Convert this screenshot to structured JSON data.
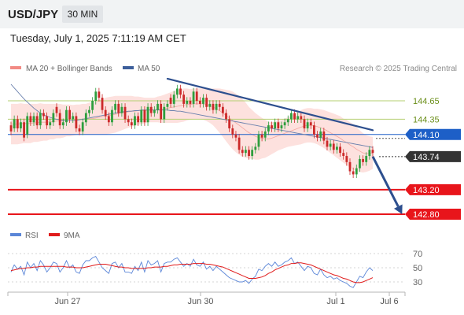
{
  "header": {
    "symbol": "USD/JPY",
    "timeframe": "30 MIN",
    "datetime": "Tuesday, July 1, 2025 7:11:19 AM CET"
  },
  "legend": {
    "bollinger": {
      "label": "MA 20 + Bollinger Bands",
      "color": "#f28a84"
    },
    "ma50": {
      "label": "MA 50",
      "color": "#3d5f9b"
    },
    "rsi": {
      "label": "RSI",
      "color": "#5b86d8"
    },
    "rsi_ma": {
      "label": "9MA",
      "color": "#e01b1b"
    }
  },
  "credit": "Research © 2025 Trading Central",
  "colors": {
    "up": "#2e9e3e",
    "down": "#cc2929",
    "resistance": "#b5cf72",
    "pivot": "#1d5fc7",
    "support": "#e8151b",
    "current": "#333333",
    "trendline": "#2d4f8e",
    "band_fill": "#fde1de"
  },
  "chart_data": {
    "type": "candlestick",
    "y_unit": "JPY per USD",
    "ylim": [
      142.6,
      145.05
    ],
    "x_ticks": [
      "Jun 27",
      "Jun 30",
      "Jul 1",
      "Jul 6"
    ],
    "levels": [
      {
        "value": 144.65,
        "label": "144.65",
        "kind": "resistance"
      },
      {
        "value": 144.35,
        "label": "144.35",
        "kind": "resistance"
      },
      {
        "value": 144.1,
        "label": "144.10",
        "kind": "pivot"
      },
      {
        "value": 143.74,
        "label": "143.74",
        "kind": "current"
      },
      {
        "value": 143.2,
        "label": "143.20",
        "kind": "support"
      },
      {
        "value": 142.8,
        "label": "142.80",
        "kind": "support"
      }
    ],
    "close": [
      144.15,
      144.35,
      144.2,
      144.3,
      144.05,
      144.4,
      144.3,
      144.4,
      144.25,
      144.45,
      144.4,
      144.25,
      144.3,
      144.45,
      144.45,
      144.25,
      144.3,
      144.5,
      144.35,
      144.4,
      144.2,
      144.15,
      144.3,
      144.45,
      144.5,
      144.65,
      144.8,
      144.7,
      144.5,
      144.4,
      144.3,
      144.5,
      144.6,
      144.45,
      144.55,
      144.35,
      144.3,
      144.25,
      144.4,
      144.3,
      144.5,
      144.3,
      144.55,
      144.45,
      144.5,
      144.6,
      144.35,
      144.55,
      144.6,
      144.6,
      144.75,
      144.85,
      144.75,
      144.6,
      144.65,
      144.6,
      144.8,
      144.65,
      144.6,
      144.7,
      144.55,
      144.6,
      144.5,
      144.6,
      144.55,
      144.45,
      144.35,
      144.2,
      144.1,
      144.05,
      143.85,
      143.8,
      143.85,
      143.75,
      143.85,
      143.9,
      144.1,
      144.05,
      144.15,
      144.25,
      144.2,
      144.3,
      144.2,
      144.25,
      144.3,
      144.35,
      144.45,
      144.35,
      144.4,
      144.35,
      144.2,
      144.3,
      144.25,
      144.1,
      144.05,
      144.15,
      144.0,
      143.9,
      143.95,
      143.85,
      143.9,
      143.8,
      143.75,
      143.65,
      143.5,
      143.45,
      143.55,
      143.7,
      143.65,
      143.75,
      143.85,
      143.8
    ],
    "open_offset": [
      0.1,
      -0.15,
      0.15,
      -0.1,
      0.25,
      -0.3,
      0.1,
      -0.1,
      0.15,
      -0.2,
      0.05,
      0.15,
      -0.05,
      -0.15,
      0.1,
      0.2,
      -0.05,
      -0.2,
      0.15,
      -0.05,
      0.2,
      0.05,
      -0.15,
      -0.15,
      -0.05,
      -0.15,
      -0.15,
      0.1,
      0.2,
      0.1,
      0.1,
      -0.2,
      -0.1,
      0.15,
      -0.1,
      0.2,
      0.05,
      0.05,
      -0.15,
      0.1,
      -0.2,
      0.2,
      -0.25,
      0.1,
      -0.05,
      -0.1,
      0.25,
      -0.2,
      -0.05,
      0.1,
      -0.15,
      -0.1,
      0.1,
      0.15,
      -0.05,
      0.05,
      -0.2,
      0.15,
      0.05,
      -0.1,
      0.15,
      -0.05,
      0.1,
      -0.1,
      0.05,
      0.1,
      0.1,
      0.15,
      0.1,
      0.05,
      0.2,
      0.05,
      -0.05,
      0.1,
      -0.1,
      -0.05,
      -0.2,
      0.05,
      -0.1,
      -0.1,
      0.05,
      -0.1,
      0.1,
      -0.05,
      -0.05,
      -0.05,
      -0.1,
      0.1,
      -0.05,
      0.05,
      0.15,
      -0.1,
      0.05,
      0.15,
      0.05,
      -0.1,
      0.15,
      0.1,
      -0.05,
      0.1,
      -0.05,
      0.1,
      0.05,
      0.1,
      0.15,
      0.05,
      -0.1,
      -0.15,
      0.05,
      -0.1,
      -0.1,
      0.05
    ],
    "ma50": [
      144.92,
      144.86,
      144.8,
      144.74,
      144.68,
      144.63,
      144.58,
      144.53,
      144.49,
      144.45,
      144.42,
      144.4,
      144.38,
      144.36,
      144.35,
      144.34,
      144.33,
      144.33,
      144.33,
      144.33,
      144.33,
      144.34,
      144.35,
      144.36,
      144.37,
      144.38,
      144.39,
      144.4,
      144.41,
      144.42,
      144.43,
      144.44,
      144.45,
      144.46,
      144.47,
      144.47,
      144.48,
      144.48,
      144.49,
      144.49,
      144.5,
      144.5,
      144.5,
      144.5,
      144.5,
      144.5,
      144.5,
      144.5,
      144.5,
      144.49,
      144.49,
      144.48,
      144.48,
      144.47,
      144.46,
      144.45,
      144.44,
      144.43,
      144.42,
      144.41,
      144.4,
      144.39,
      144.38,
      144.37,
      144.36,
      144.35,
      144.34,
      144.33,
      144.32,
      144.31,
      144.3,
      144.29,
      144.28,
      144.27,
      144.26,
      144.25,
      144.24,
      144.23,
      144.22,
      144.21,
      144.2,
      144.19,
      144.18,
      144.17,
      144.16,
      144.15,
      144.14,
      144.13,
      144.12,
      144.11,
      144.1,
      144.09,
      144.08,
      144.07,
      144.06,
      144.05,
      144.04,
      144.03,
      144.02,
      144.01,
      144.0,
      143.99,
      143.98,
      143.97,
      143.96,
      143.95,
      143.94,
      143.93,
      143.92,
      143.91,
      143.9,
      143.89
    ],
    "bb_mid": [
      144.27,
      144.27,
      144.27,
      144.28,
      144.28,
      144.28,
      144.28,
      144.29,
      144.29,
      144.3,
      144.3,
      144.3,
      144.31,
      144.31,
      144.32,
      144.32,
      144.32,
      144.33,
      144.33,
      144.33,
      144.34,
      144.34,
      144.35,
      144.35,
      144.36,
      144.36,
      144.37,
      144.38,
      144.39,
      144.4,
      144.41,
      144.42,
      144.43,
      144.44,
      144.45,
      144.46,
      144.47,
      144.48,
      144.48,
      144.49,
      144.49,
      144.49,
      144.5,
      144.5,
      144.5,
      144.51,
      144.51,
      144.52,
      144.53,
      144.54,
      144.55,
      144.56,
      144.57,
      144.58,
      144.59,
      144.59,
      144.6,
      144.6,
      144.6,
      144.6,
      144.59,
      144.57,
      144.55,
      144.52,
      144.49,
      144.45,
      144.41,
      144.37,
      144.33,
      144.29,
      144.25,
      144.21,
      144.17,
      144.13,
      144.1,
      144.07,
      144.05,
      144.04,
      144.03,
      144.03,
      144.04,
      144.06,
      144.08,
      144.1,
      144.12,
      144.14,
      144.16,
      144.18,
      144.2,
      144.22,
      144.24,
      144.25,
      144.25,
      144.24,
      144.23,
      144.21,
      144.19,
      144.16,
      144.13,
      144.1,
      144.07,
      144.04,
      144.0,
      143.97,
      143.93,
      143.9,
      143.86,
      143.83,
      143.8,
      143.79,
      143.79,
      143.8
    ],
    "bb_width": [
      0.33,
      0.33,
      0.33,
      0.33,
      0.32,
      0.32,
      0.32,
      0.31,
      0.31,
      0.31,
      0.3,
      0.3,
      0.29,
      0.29,
      0.28,
      0.28,
      0.27,
      0.26,
      0.26,
      0.25,
      0.25,
      0.25,
      0.25,
      0.25,
      0.26,
      0.26,
      0.27,
      0.28,
      0.29,
      0.3,
      0.3,
      0.3,
      0.3,
      0.29,
      0.28,
      0.27,
      0.26,
      0.25,
      0.24,
      0.23,
      0.22,
      0.21,
      0.2,
      0.2,
      0.2,
      0.21,
      0.22,
      0.23,
      0.24,
      0.25,
      0.26,
      0.27,
      0.27,
      0.27,
      0.26,
      0.25,
      0.25,
      0.25,
      0.25,
      0.26,
      0.27,
      0.28,
      0.3,
      0.33,
      0.36,
      0.39,
      0.42,
      0.45,
      0.47,
      0.48,
      0.48,
      0.47,
      0.45,
      0.42,
      0.4,
      0.38,
      0.36,
      0.33,
      0.31,
      0.28,
      0.26,
      0.25,
      0.24,
      0.24,
      0.24,
      0.24,
      0.25,
      0.26,
      0.27,
      0.28,
      0.28,
      0.28,
      0.28,
      0.28,
      0.29,
      0.3,
      0.31,
      0.32,
      0.33,
      0.34,
      0.35,
      0.36,
      0.36,
      0.37,
      0.37,
      0.37,
      0.36,
      0.34,
      0.32,
      0.3,
      0.28,
      0.26
    ],
    "trendline": {
      "from": {
        "index": 48,
        "value": 145.01
      },
      "to": {
        "index": 111,
        "value": 144.17
      }
    },
    "forecast_arrow": {
      "from": {
        "index": 111,
        "value": 143.74
      },
      "to": {
        "index": 120,
        "value": 142.8
      }
    },
    "rsi_panel": {
      "ticks": [
        70,
        50,
        30
      ],
      "ylim": [
        20,
        80
      ],
      "rsi": [
        44,
        54,
        48,
        52,
        40,
        58,
        50,
        56,
        46,
        60,
        54,
        44,
        50,
        58,
        56,
        44,
        50,
        60,
        50,
        54,
        44,
        42,
        54,
        60,
        60,
        64,
        66,
        58,
        50,
        46,
        42,
        56,
        58,
        50,
        56,
        44,
        44,
        42,
        52,
        46,
        58,
        44,
        60,
        54,
        56,
        60,
        44,
        56,
        58,
        58,
        62,
        64,
        58,
        52,
        56,
        52,
        62,
        54,
        52,
        58,
        48,
        52,
        46,
        52,
        48,
        44,
        40,
        36,
        34,
        32,
        30,
        30,
        32,
        28,
        34,
        38,
        48,
        46,
        52,
        56,
        52,
        58,
        52,
        54,
        58,
        60,
        64,
        56,
        58,
        52,
        46,
        52,
        50,
        42,
        40,
        48,
        40,
        36,
        38,
        34,
        36,
        32,
        30,
        28,
        24,
        22,
        30,
        38,
        36,
        44,
        50,
        46
      ],
      "ma": [
        46,
        47,
        48,
        49,
        49,
        50,
        50,
        51,
        51,
        52,
        52,
        52,
        52,
        52,
        52,
        52,
        52,
        51,
        51,
        51,
        50,
        50,
        50,
        51,
        52,
        53,
        54,
        55,
        55,
        55,
        54,
        53,
        52,
        51,
        51,
        50,
        50,
        49,
        49,
        49,
        49,
        49,
        50,
        50,
        51,
        51,
        51,
        52,
        52,
        53,
        54,
        54,
        55,
        55,
        55,
        55,
        56,
        56,
        56,
        56,
        55,
        55,
        54,
        53,
        52,
        51,
        49,
        47,
        45,
        43,
        41,
        39,
        37,
        35,
        35,
        35,
        36,
        37,
        39,
        42,
        44,
        47,
        49,
        51,
        53,
        54,
        56,
        56,
        57,
        57,
        56,
        55,
        54,
        52,
        50,
        48,
        46,
        44,
        42,
        40,
        39,
        37,
        35,
        34,
        32,
        30,
        29,
        29,
        30,
        32,
        34,
        36
      ]
    }
  }
}
